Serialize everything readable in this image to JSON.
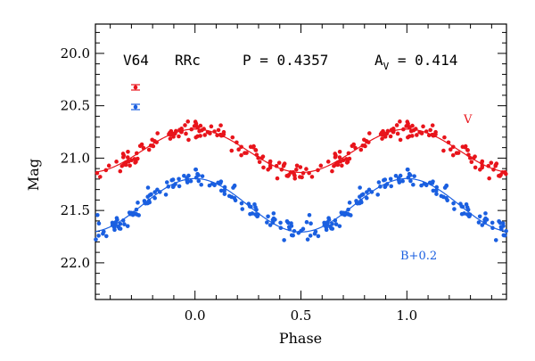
{
  "header": {
    "star": "V64",
    "type": "RRc",
    "period": "P = 0.4357",
    "amp_main": "A",
    "amp_sub": "V",
    "amp_value": " = 0.414"
  },
  "chart_data": {
    "type": "scatter",
    "xlabel": "Phase",
    "ylabel": "Mag",
    "xlim": [
      -0.47,
      1.47
    ],
    "ylim": [
      22.35,
      19.72
    ],
    "y_inverted": true,
    "xticks": [
      "0.0",
      "0.5",
      "1.0"
    ],
    "yticks": [
      "20.0",
      "20.5",
      "21.0",
      "21.5",
      "22.0"
    ],
    "series": [
      {
        "name": "V",
        "color": "#e8141b",
        "mean_mag": 20.93,
        "half_amplitude": 0.207,
        "points_per_cycle": 128,
        "scatter": 0.045,
        "error_bar": 0.02
      },
      {
        "name": "B+0.2",
        "color": "#1a5fe0",
        "mean_mag": 21.45,
        "half_amplitude": 0.255,
        "points_per_cycle": 128,
        "scatter": 0.05,
        "error_bar": 0.015
      }
    ]
  }
}
